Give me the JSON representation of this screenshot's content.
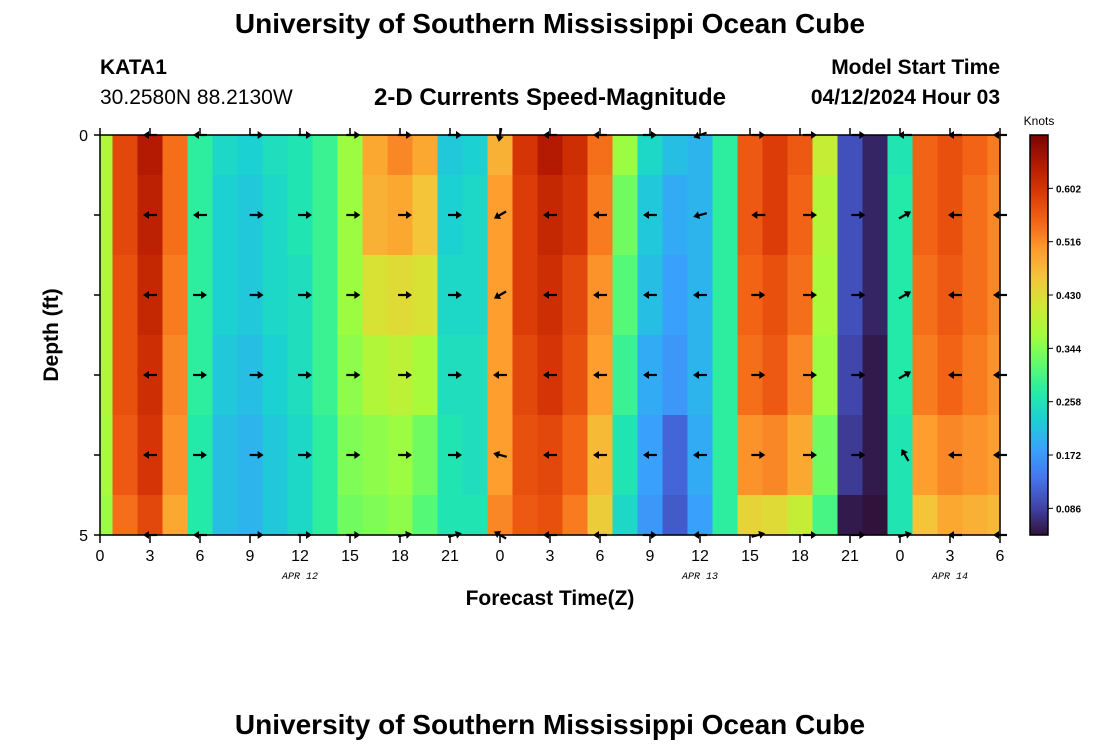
{
  "header": {
    "title": "University of Southern Mississippi Ocean Cube",
    "station": "KATA1",
    "coords": "30.2580N  88.2130W",
    "subtitle": "2-D Currents Speed-Magnitude",
    "model_start_label": "Model Start Time",
    "model_start_value": "04/12/2024 Hour 03"
  },
  "footer": {
    "title": "University of Southern Mississippi Ocean Cube"
  },
  "chart_data": {
    "type": "heatmap",
    "title": "2-D Currents Speed-Magnitude",
    "xlabel": "Forecast Time(Z)",
    "ylabel": "Depth (ft)",
    "x_hours": [
      0,
      1.5,
      3,
      4.5,
      6,
      7.5,
      9,
      10.5,
      12,
      13.5,
      15,
      16.5,
      18,
      19.5,
      21,
      22.5,
      24,
      25.5,
      27,
      28.5,
      30,
      31.5,
      33,
      34.5,
      36,
      37.5,
      39,
      40.5,
      42,
      43.5,
      45,
      46.5,
      48,
      49.5,
      51,
      52.5,
      54
    ],
    "xlim": [
      0,
      54
    ],
    "x_ticks": [
      0,
      3,
      6,
      9,
      12,
      15,
      18,
      21,
      24,
      27,
      30,
      33,
      36,
      39,
      42,
      45,
      48,
      51,
      54
    ],
    "x_tick_labels": [
      "0",
      "3",
      "6",
      "9",
      "12",
      "15",
      "18",
      "21",
      "0",
      "3",
      "6",
      "9",
      "12",
      "15",
      "18",
      "21",
      "0",
      "3",
      "6"
    ],
    "date_labels": [
      {
        "hour": 12,
        "label": "APR 12"
      },
      {
        "hour": 36,
        "label": "APR 13"
      },
      {
        "hour": 51,
        "label": "APR 14"
      }
    ],
    "ylim": [
      0,
      5
    ],
    "y_ticks": [
      0,
      1,
      2,
      3,
      4,
      5
    ],
    "y_tick_labels": [
      "0",
      "",
      "",
      "",
      "",
      "5"
    ],
    "depth_levels": [
      0,
      1,
      2,
      3,
      4,
      5
    ],
    "speed_knots": [
      [
        0.38,
        0.58,
        0.64,
        0.54,
        0.28,
        0.24,
        0.23,
        0.25,
        0.26,
        0.29,
        0.36,
        0.49,
        0.52,
        0.49,
        0.22,
        0.23,
        0.48,
        0.6,
        0.64,
        0.61,
        0.54,
        0.36,
        0.24,
        0.21,
        0.2,
        0.28,
        0.56,
        0.59,
        0.56,
        0.4,
        0.1,
        0.06,
        0.26,
        0.55,
        0.57,
        0.55,
        0.53
      ],
      [
        0.38,
        0.58,
        0.63,
        0.54,
        0.28,
        0.23,
        0.22,
        0.24,
        0.26,
        0.29,
        0.36,
        0.48,
        0.49,
        0.46,
        0.23,
        0.24,
        0.5,
        0.59,
        0.62,
        0.6,
        0.53,
        0.33,
        0.22,
        0.19,
        0.2,
        0.28,
        0.56,
        0.59,
        0.55,
        0.38,
        0.1,
        0.06,
        0.27,
        0.55,
        0.57,
        0.54,
        0.52
      ],
      [
        0.38,
        0.57,
        0.62,
        0.53,
        0.28,
        0.23,
        0.22,
        0.24,
        0.25,
        0.29,
        0.36,
        0.42,
        0.43,
        0.42,
        0.24,
        0.24,
        0.5,
        0.59,
        0.61,
        0.58,
        0.51,
        0.31,
        0.21,
        0.18,
        0.2,
        0.28,
        0.55,
        0.57,
        0.54,
        0.37,
        0.1,
        0.06,
        0.27,
        0.54,
        0.56,
        0.54,
        0.52
      ],
      [
        0.38,
        0.57,
        0.61,
        0.52,
        0.28,
        0.22,
        0.21,
        0.23,
        0.25,
        0.29,
        0.35,
        0.38,
        0.39,
        0.37,
        0.25,
        0.25,
        0.5,
        0.58,
        0.6,
        0.57,
        0.5,
        0.29,
        0.19,
        0.17,
        0.2,
        0.28,
        0.54,
        0.56,
        0.52,
        0.36,
        0.09,
        0.05,
        0.27,
        0.53,
        0.55,
        0.53,
        0.51
      ],
      [
        0.37,
        0.56,
        0.6,
        0.51,
        0.27,
        0.21,
        0.2,
        0.22,
        0.24,
        0.28,
        0.34,
        0.35,
        0.36,
        0.33,
        0.26,
        0.25,
        0.5,
        0.57,
        0.58,
        0.55,
        0.47,
        0.26,
        0.18,
        0.12,
        0.19,
        0.28,
        0.51,
        0.52,
        0.49,
        0.33,
        0.08,
        0.05,
        0.26,
        0.5,
        0.52,
        0.51,
        0.5
      ],
      [
        0.36,
        0.54,
        0.58,
        0.49,
        0.27,
        0.21,
        0.2,
        0.22,
        0.24,
        0.28,
        0.33,
        0.34,
        0.35,
        0.31,
        0.26,
        0.26,
        0.52,
        0.56,
        0.57,
        0.53,
        0.45,
        0.24,
        0.17,
        0.11,
        0.18,
        0.28,
        0.44,
        0.43,
        0.4,
        0.3,
        0.05,
        0.03,
        0.26,
        0.46,
        0.49,
        0.48,
        0.47
      ]
    ],
    "arrow_hours": [
      3,
      6,
      9.4,
      12.3,
      15.2,
      18.3,
      21.3,
      24,
      27,
      30,
      33,
      36,
      39.5,
      42.6,
      45.5,
      48.3,
      51.3,
      54
    ],
    "arrow_depths": [
      0,
      1,
      2,
      3,
      4,
      5
    ],
    "arrow_dir_deg": [
      [
        180,
        180,
        0,
        0,
        0,
        0,
        0,
        260,
        180,
        180,
        0,
        200,
        0,
        0,
        0,
        180,
        180,
        180
      ],
      [
        180,
        180,
        0,
        0,
        0,
        0,
        0,
        210,
        180,
        180,
        180,
        195,
        180,
        0,
        0,
        30,
        180,
        180
      ],
      [
        180,
        0,
        0,
        0,
        0,
        0,
        0,
        210,
        180,
        180,
        180,
        180,
        0,
        0,
        0,
        30,
        180,
        180
      ],
      [
        180,
        0,
        0,
        0,
        0,
        0,
        0,
        180,
        180,
        180,
        180,
        180,
        0,
        0,
        0,
        30,
        180,
        180
      ],
      [
        180,
        0,
        0,
        0,
        0,
        0,
        0,
        165,
        180,
        180,
        180,
        180,
        0,
        0,
        0,
        120,
        180,
        180
      ],
      [
        180,
        180,
        0,
        0,
        0,
        10,
        15,
        150,
        180,
        180,
        0,
        180,
        15,
        0,
        0,
        15,
        180,
        180
      ]
    ],
    "colorbar": {
      "label": "Knots",
      "min": 0.043,
      "max": 0.688,
      "ticks": [
        0.086,
        0.172,
        0.258,
        0.344,
        0.43,
        0.516,
        0.602
      ],
      "tick_labels": [
        "0.086",
        "0.172",
        "0.258",
        "0.344",
        "0.430",
        "0.516",
        "0.602"
      ],
      "colors": [
        "#30123b",
        "#4145ab",
        "#4675ed",
        "#39a2fc",
        "#1bcfd4",
        "#24eca6",
        "#61fc6c",
        "#a4fc3b",
        "#d1e834",
        "#f3c63a",
        "#fe9b2d",
        "#f36315",
        "#d93806",
        "#b11901",
        "#7a0402"
      ]
    }
  }
}
